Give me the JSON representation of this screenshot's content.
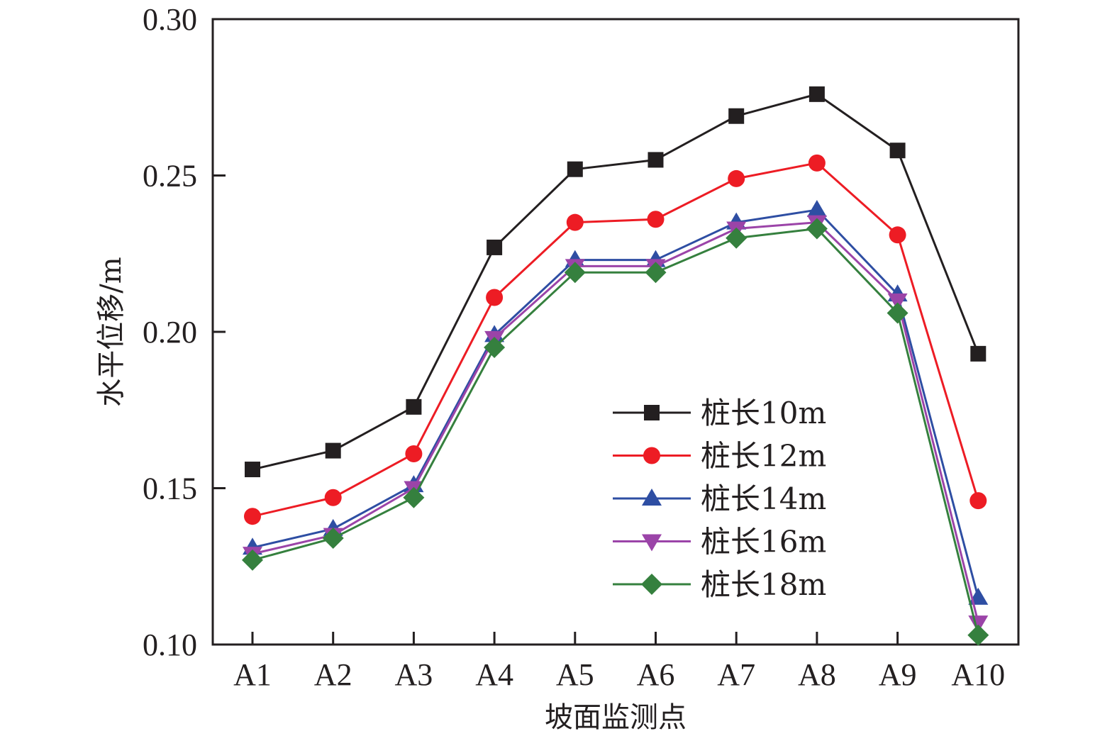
{
  "chart_data": {
    "type": "line",
    "title": "",
    "xlabel": "坡面监测点",
    "ylabel": "水平位移/m",
    "categories": [
      "A1",
      "A2",
      "A3",
      "A4",
      "A5",
      "A6",
      "A7",
      "A8",
      "A9",
      "A10"
    ],
    "ylim": [
      0.1,
      0.3
    ],
    "yticks": [
      0.1,
      0.15,
      0.2,
      0.25,
      0.3
    ],
    "ytick_labels": [
      "0.10",
      "0.15",
      "0.20",
      "0.25",
      "0.30"
    ],
    "grid": false,
    "legend_position": "center-right",
    "series": [
      {
        "name": "桩长10m",
        "color": "#231f20",
        "marker": "square",
        "values": [
          0.156,
          0.162,
          0.176,
          0.227,
          0.252,
          0.255,
          0.269,
          0.276,
          0.258,
          0.193
        ]
      },
      {
        "name": "桩长12m",
        "color": "#ed1c24",
        "marker": "circle",
        "values": [
          0.141,
          0.147,
          0.161,
          0.211,
          0.235,
          0.236,
          0.249,
          0.254,
          0.231,
          0.146
        ]
      },
      {
        "name": "桩长14m",
        "color": "#2e4ea3",
        "marker": "triangle-up",
        "values": [
          0.131,
          0.137,
          0.151,
          0.199,
          0.223,
          0.223,
          0.235,
          0.239,
          0.212,
          0.115
        ]
      },
      {
        "name": "桩长16m",
        "color": "#9b44a8",
        "marker": "triangle-down",
        "values": [
          0.129,
          0.135,
          0.15,
          0.198,
          0.221,
          0.221,
          0.233,
          0.235,
          0.21,
          0.107
        ]
      },
      {
        "name": "桩长18m",
        "color": "#35803e",
        "marker": "diamond",
        "values": [
          0.127,
          0.134,
          0.147,
          0.195,
          0.219,
          0.219,
          0.23,
          0.233,
          0.206,
          0.103
        ]
      }
    ]
  }
}
